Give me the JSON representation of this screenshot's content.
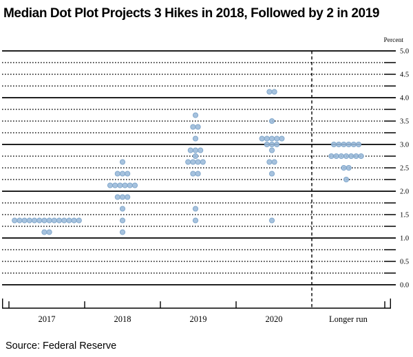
{
  "title": "Median Dot Plot Projects 3 Hikes in 2018, Followed by 2 in 2019",
  "source": "Source: Federal Reserve",
  "chart_data": {
    "type": "scatter",
    "subtype": "fomc-dot-plot",
    "title": "Median Dot Plot Projects 3 Hikes in 2018, Followed by 2 in 2019",
    "xlabel": "",
    "ylabel": "Percent",
    "ylim": [
      0.0,
      5.0
    ],
    "gridline_step": 0.25,
    "label_step": 0.5,
    "grid": "on",
    "legend_position": "none",
    "y_axis_labels": [
      "5.0",
      "4.5",
      "4.0",
      "3.5",
      "3.0",
      "2.5",
      "2.0",
      "1.5",
      "1.0",
      "0.5",
      "0.0"
    ],
    "categories": [
      "2017",
      "2018",
      "2019",
      "2020",
      "Longer run"
    ],
    "dot_color": "#9ab9da",
    "dot_edge_color": "#7aa2c8",
    "series": [
      {
        "category": "2017",
        "dots": [
          {
            "rate": 1.375,
            "count": 14
          },
          {
            "rate": 1.125,
            "count": 2
          }
        ]
      },
      {
        "category": "2018",
        "dots": [
          {
            "rate": 2.625,
            "count": 1
          },
          {
            "rate": 2.375,
            "count": 3
          },
          {
            "rate": 2.125,
            "count": 6
          },
          {
            "rate": 1.875,
            "count": 3
          },
          {
            "rate": 1.625,
            "count": 1
          },
          {
            "rate": 1.375,
            "count": 1
          },
          {
            "rate": 1.125,
            "count": 1
          }
        ]
      },
      {
        "category": "2019",
        "dots": [
          {
            "rate": 3.625,
            "count": 1
          },
          {
            "rate": 3.375,
            "count": 2
          },
          {
            "rate": 3.125,
            "count": 1
          },
          {
            "rate": 2.875,
            "count": 3
          },
          {
            "rate": 2.75,
            "count": 1
          },
          {
            "rate": 2.625,
            "count": 4
          },
          {
            "rate": 2.375,
            "count": 2
          },
          {
            "rate": 1.625,
            "count": 1
          },
          {
            "rate": 1.375,
            "count": 1
          }
        ]
      },
      {
        "category": "2020",
        "dots": [
          {
            "rate": 4.125,
            "count": 2
          },
          {
            "rate": 3.5,
            "count": 1
          },
          {
            "rate": 3.125,
            "count": 5
          },
          {
            "rate": 3.0,
            "count": 3
          },
          {
            "rate": 2.875,
            "count": 1
          },
          {
            "rate": 2.625,
            "count": 2
          },
          {
            "rate": 2.375,
            "count": 1
          },
          {
            "rate": 1.375,
            "count": 1
          }
        ]
      },
      {
        "category": "Longer run",
        "dots": [
          {
            "rate": 3.0,
            "count": 6
          },
          {
            "rate": 2.75,
            "count": 7
          },
          {
            "rate": 2.5,
            "count": 2
          },
          {
            "rate": 2.25,
            "count": 1
          }
        ]
      }
    ]
  }
}
